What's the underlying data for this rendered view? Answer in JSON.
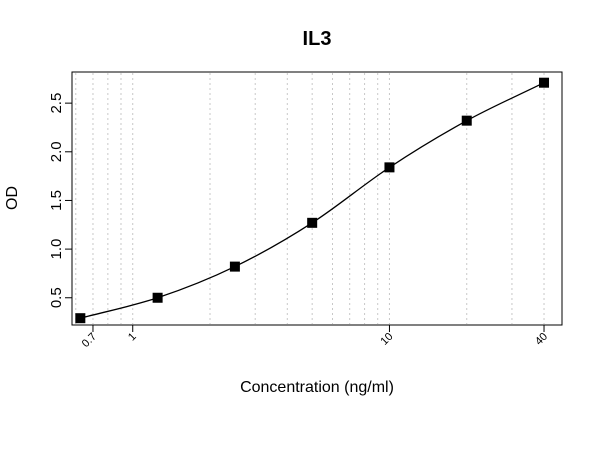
{
  "chart_data": {
    "type": "line",
    "title": "IL3",
    "xlabel": "Concentration (ng/ml)",
    "ylabel": "OD",
    "x_scale": "log",
    "xlim": [
      0.58,
      47
    ],
    "ylim": [
      0.22,
      2.82
    ],
    "x_tick_labels": [
      {
        "value": 0.7,
        "label": "0.7"
      },
      {
        "value": 1,
        "label": "1"
      },
      {
        "value": 10,
        "label": "10"
      },
      {
        "value": 40,
        "label": "40"
      }
    ],
    "y_ticks": [
      {
        "value": 0.5,
        "label": "0.5"
      },
      {
        "value": 1.0,
        "label": "1.0"
      },
      {
        "value": 1.5,
        "label": "1.5"
      },
      {
        "value": 2.0,
        "label": "2.0"
      },
      {
        "value": 2.5,
        "label": "2.5"
      }
    ],
    "x_gridlines": [
      0.6,
      0.7,
      0.8,
      0.9,
      1,
      2,
      3,
      4,
      5,
      6,
      7,
      8,
      9,
      10,
      20,
      30,
      40
    ],
    "grid": "vertical dotted",
    "series": [
      {
        "marker": "square",
        "x": [
          0.625,
          1.25,
          2.5,
          5,
          10,
          20,
          40
        ],
        "y": [
          0.29,
          0.5,
          0.82,
          1.27,
          1.84,
          2.32,
          2.71
        ]
      }
    ],
    "colors": {
      "line": "#000000",
      "marker": "#000000",
      "grid": "#c8c8c8",
      "frame": "#000000"
    }
  }
}
